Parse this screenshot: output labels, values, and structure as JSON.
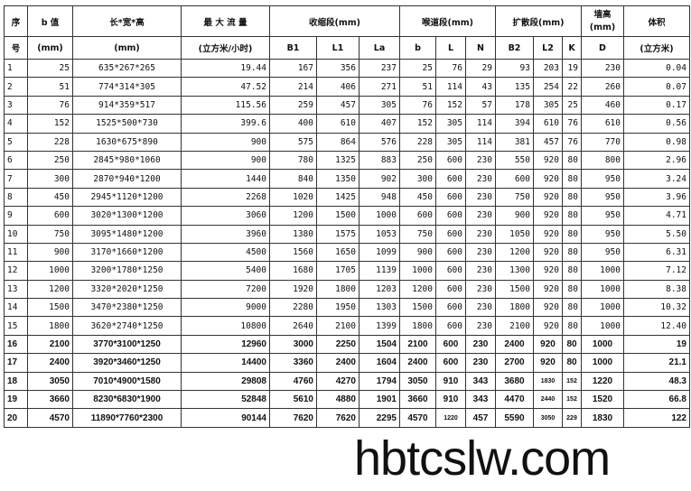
{
  "header": {
    "row1": {
      "seq": "序",
      "b": "b 值",
      "dims": "长*宽*高",
      "flow": "最 大 流 量",
      "contract": "收缩段(mm)",
      "throat": "喉道段(mm)",
      "diverge": "扩散段(mm)",
      "wall": "墙高\n(mm)",
      "volume": "体积"
    },
    "row2": {
      "seq": "号",
      "b": "(mm)",
      "dims": "(mm)",
      "flow": "(立方米/小时)",
      "B1": "B1",
      "L1": "L1",
      "La": "La",
      "tb": "b",
      "L": "L",
      "N": "N",
      "B2": "B2",
      "L2": "L2",
      "K": "K",
      "D": "D",
      "volume": "(立方米)"
    }
  },
  "rows": [
    [
      "1",
      "25",
      "635*267*265",
      "19.44",
      "167",
      "356",
      "237",
      "25",
      "76",
      "29",
      "93",
      "203",
      "19",
      "230",
      "0.04"
    ],
    [
      "2",
      "51",
      "774*314*305",
      "47.52",
      "214",
      "406",
      "271",
      "51",
      "114",
      "43",
      "135",
      "254",
      "22",
      "260",
      "0.07"
    ],
    [
      "3",
      "76",
      "914*359*517",
      "115.56",
      "259",
      "457",
      "305",
      "76",
      "152",
      "57",
      "178",
      "305",
      "25",
      "460",
      "0.17"
    ],
    [
      "4",
      "152",
      "1525*500*730",
      "399.6",
      "400",
      "610",
      "407",
      "152",
      "305",
      "114",
      "394",
      "610",
      "76",
      "610",
      "0.56"
    ],
    [
      "5",
      "228",
      "1630*675*890",
      "900",
      "575",
      "864",
      "576",
      "228",
      "305",
      "114",
      "381",
      "457",
      "76",
      "770",
      "0.98"
    ],
    [
      "6",
      "250",
      "2845*980*1060",
      "900",
      "780",
      "1325",
      "883",
      "250",
      "600",
      "230",
      "550",
      "920",
      "80",
      "800",
      "2.96"
    ],
    [
      "7",
      "300",
      "2870*940*1200",
      "1440",
      "840",
      "1350",
      "902",
      "300",
      "600",
      "230",
      "600",
      "920",
      "80",
      "950",
      "3.24"
    ],
    [
      "8",
      "450",
      "2945*1120*1200",
      "2268",
      "1020",
      "1425",
      "948",
      "450",
      "600",
      "230",
      "750",
      "920",
      "80",
      "950",
      "3.96"
    ],
    [
      "9",
      "600",
      "3020*1300*1200",
      "3060",
      "1200",
      "1500",
      "1000",
      "600",
      "600",
      "230",
      "900",
      "920",
      "80",
      "950",
      "4.71"
    ],
    [
      "10",
      "750",
      "3095*1480*1200",
      "3960",
      "1380",
      "1575",
      "1053",
      "750",
      "600",
      "230",
      "1050",
      "920",
      "80",
      "950",
      "5.50"
    ],
    [
      "11",
      "900",
      "3170*1660*1200",
      "4500",
      "1560",
      "1650",
      "1099",
      "900",
      "600",
      "230",
      "1200",
      "920",
      "80",
      "950",
      "6.31"
    ],
    [
      "12",
      "1000",
      "3200*1780*1250",
      "5400",
      "1680",
      "1705",
      "1139",
      "1000",
      "600",
      "230",
      "1300",
      "920",
      "80",
      "1000",
      "7.12"
    ],
    [
      "13",
      "1200",
      "3320*2020*1250",
      "7200",
      "1920",
      "1800",
      "1203",
      "1200",
      "600",
      "230",
      "1500",
      "920",
      "80",
      "1000",
      "8.38"
    ],
    [
      "14",
      "1500",
      "3470*2380*1250",
      "9000",
      "2280",
      "1950",
      "1303",
      "1500",
      "600",
      "230",
      "1800",
      "920",
      "80",
      "1000",
      "10.32"
    ],
    [
      "15",
      "1800",
      "3620*2740*1250",
      "10800",
      "2640",
      "2100",
      "1399",
      "1800",
      "600",
      "230",
      "2100",
      "920",
      "80",
      "1000",
      "12.40"
    ],
    [
      "16",
      "2100",
      "3770*3100*1250",
      "12960",
      "3000",
      "2250",
      "1504",
      "2100",
      "600",
      "230",
      "2400",
      "920",
      "80",
      "1000",
      "19"
    ],
    [
      "17",
      "2400",
      "3920*3460*1250",
      "14400",
      "3360",
      "2400",
      "1604",
      "2400",
      "600",
      "230",
      "2700",
      "920",
      "80",
      "1000",
      "21.1"
    ],
    [
      "18",
      "3050",
      "7010*4900*1580",
      "29808",
      "4760",
      "4270",
      "1794",
      "3050",
      "910",
      "343",
      "3680",
      "1830",
      "152",
      "1220",
      "48.3"
    ],
    [
      "19",
      "3660",
      "8230*6830*1900",
      "52848",
      "5610",
      "4880",
      "1901",
      "3660",
      "910",
      "343",
      "4470",
      "2440",
      "152",
      "1520",
      "66.8"
    ],
    [
      "20",
      "4570",
      "11890*7760*2300",
      "90144",
      "7620",
      "7620",
      "2295",
      "4570",
      "1220",
      "457",
      "5590",
      "3050",
      "229",
      "1830",
      "122"
    ]
  ],
  "watermark": "hbtcslw.com"
}
